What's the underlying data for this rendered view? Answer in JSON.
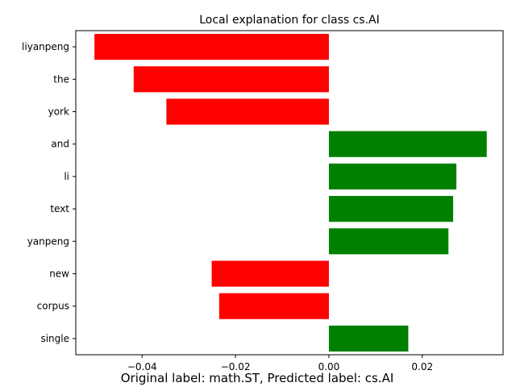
{
  "chart_data": {
    "type": "bar",
    "orientation": "horizontal",
    "title": "Local explanation for class cs.AI",
    "caption": "Original label: math.ST, Predicted label: cs.AI",
    "xlabel": "",
    "ylabel": "",
    "xlim": [
      -0.0542,
      0.0373
    ],
    "x_ticks": [
      -0.04,
      -0.02,
      0.0,
      0.02
    ],
    "x_tick_labels": [
      "−0.04",
      "−0.02",
      "0.00",
      "0.02"
    ],
    "categories": [
      "liyanpeng",
      "the",
      "york",
      "and",
      "li",
      "text",
      "yanpeng",
      "new",
      "corpus",
      "single"
    ],
    "values": [
      -0.0502,
      -0.0418,
      -0.0348,
      0.0338,
      0.0273,
      0.0266,
      0.0256,
      -0.0251,
      -0.0235,
      0.017
    ],
    "colors": {
      "negative": "#ff0000",
      "positive": "#008000"
    },
    "grid": false,
    "legend": "none"
  }
}
